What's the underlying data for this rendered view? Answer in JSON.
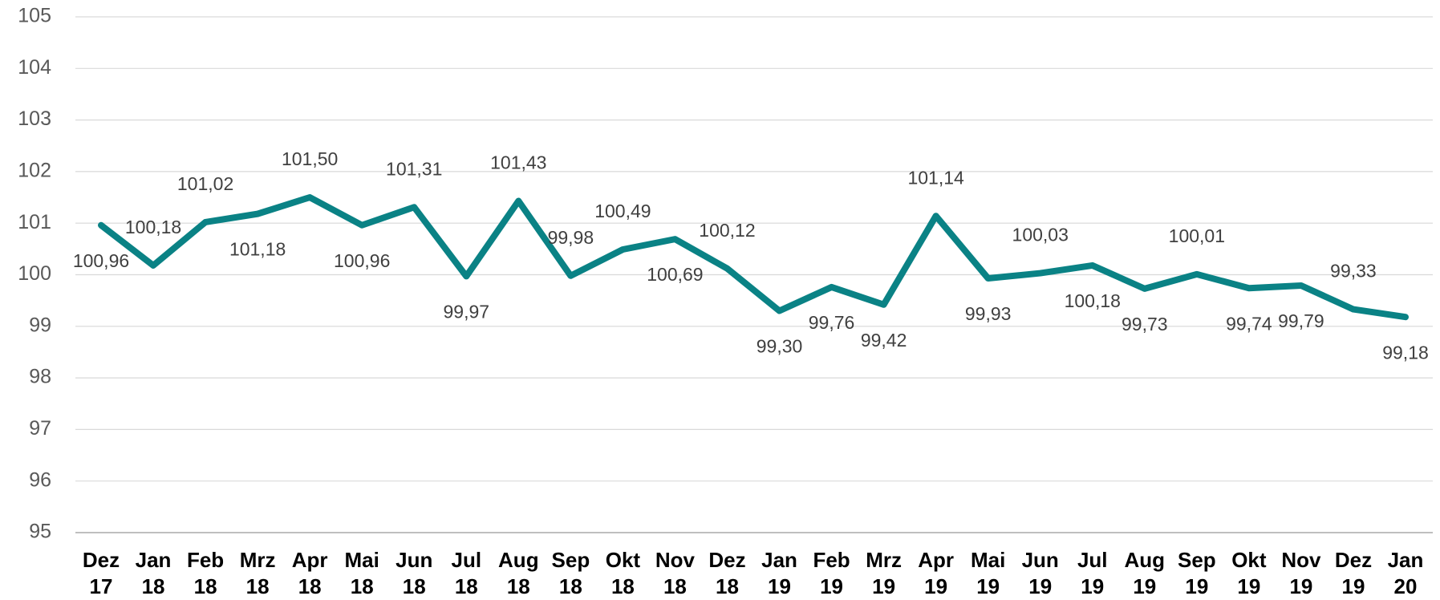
{
  "chart_data": {
    "type": "line",
    "categories": [
      [
        "Dez",
        "17"
      ],
      [
        "Jan",
        "18"
      ],
      [
        "Feb",
        "18"
      ],
      [
        "Mrz",
        "18"
      ],
      [
        "Apr",
        "18"
      ],
      [
        "Mai",
        "18"
      ],
      [
        "Jun",
        "18"
      ],
      [
        "Jul",
        "18"
      ],
      [
        "Aug",
        "18"
      ],
      [
        "Sep",
        "18"
      ],
      [
        "Okt",
        "18"
      ],
      [
        "Nov",
        "18"
      ],
      [
        "Dez",
        "18"
      ],
      [
        "Jan",
        "19"
      ],
      [
        "Feb",
        "19"
      ],
      [
        "Mrz",
        "19"
      ],
      [
        "Apr",
        "19"
      ],
      [
        "Mai",
        "19"
      ],
      [
        "Jun",
        "19"
      ],
      [
        "Jul",
        "19"
      ],
      [
        "Aug",
        "19"
      ],
      [
        "Sep",
        "19"
      ],
      [
        "Okt",
        "19"
      ],
      [
        "Nov",
        "19"
      ],
      [
        "Dez",
        "19"
      ],
      [
        "Jan",
        "20"
      ]
    ],
    "values": [
      100.96,
      100.18,
      101.02,
      101.18,
      101.5,
      100.96,
      101.31,
      99.97,
      101.43,
      99.98,
      100.49,
      100.69,
      100.12,
      99.3,
      99.76,
      99.42,
      101.14,
      99.93,
      100.03,
      100.18,
      99.73,
      100.01,
      99.74,
      99.79,
      99.33,
      99.18
    ],
    "value_labels": [
      "100,96",
      "100,18",
      "101,02",
      "101,18",
      "101,50",
      "100,96",
      "101,31",
      "99,97",
      "101,43",
      "99,98",
      "100,49",
      "100,69",
      "100,12",
      "99,30",
      "99,76",
      "99,42",
      "101,14",
      "99,93",
      "100,03",
      "100,18",
      "99,73",
      "100,01",
      "99,74",
      "99,79",
      "99,33",
      "99,18"
    ],
    "color": "#0a8285",
    "ylim": [
      95,
      105
    ],
    "yticks": [
      95,
      96,
      97,
      98,
      99,
      100,
      101,
      102,
      103,
      104,
      105
    ],
    "grid": true
  }
}
